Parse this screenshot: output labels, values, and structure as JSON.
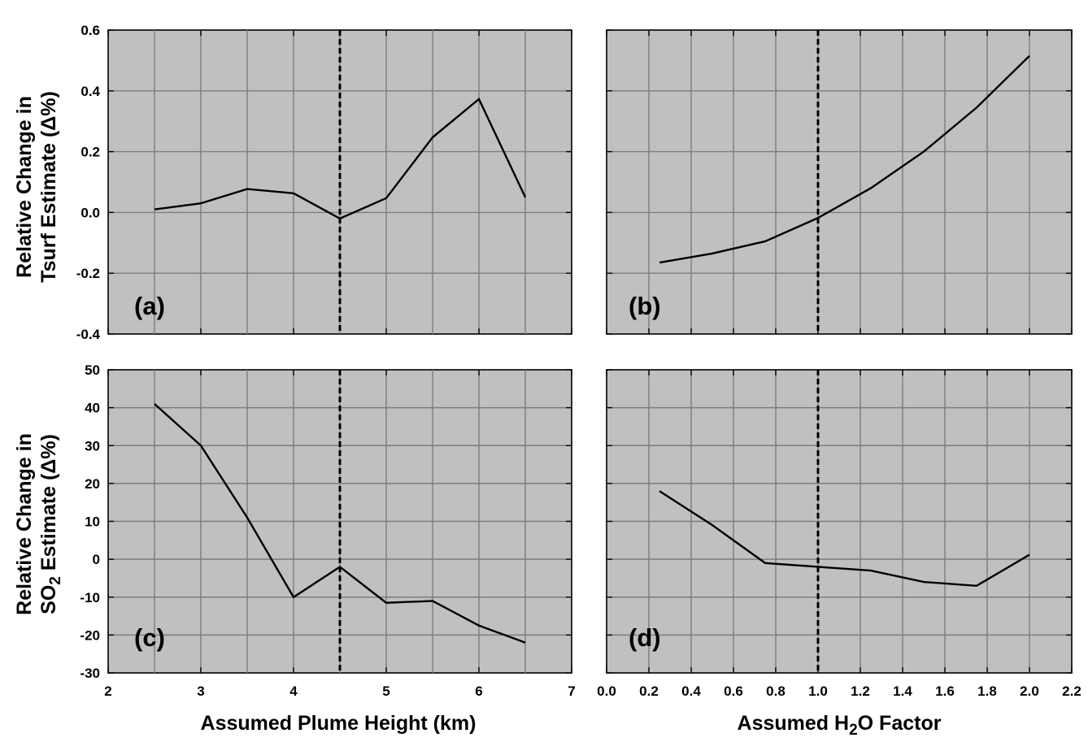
{
  "chart_data": [
    {
      "id": "a",
      "type": "line",
      "panel_label": "(a)",
      "x": [
        2.5,
        3,
        3.5,
        4,
        4.5,
        5,
        5.5,
        6,
        6.5
      ],
      "y": [
        0.01,
        0.03,
        0.077,
        0.063,
        -0.02,
        0.047,
        0.247,
        0.373,
        0.05
      ],
      "xlim": [
        2,
        7
      ],
      "ylim": [
        -0.4,
        0.6
      ],
      "xticks": [
        2,
        3,
        4,
        5,
        6,
        7
      ],
      "yticks": [
        -0.4,
        -0.2,
        0.0,
        0.2,
        0.4,
        0.6
      ],
      "ytick_labels": [
        "-0.4",
        "-0.2",
        "0.0",
        "0.2",
        "0.4",
        "0.6"
      ],
      "xgrid": [
        2.5,
        3,
        3.5,
        4,
        4.5,
        5,
        5.5,
        6,
        6.5
      ],
      "ygrid": [
        -0.2,
        0.0,
        0.2,
        0.4
      ],
      "reference_x": 4.5,
      "grid": true,
      "ylabel_line1": "Relative Change in",
      "ylabel_line2": "Tsurf Estimate (Δ%)"
    },
    {
      "id": "b",
      "type": "line",
      "panel_label": "(b)",
      "x": [
        0.25,
        0.5,
        0.75,
        1.0,
        1.25,
        1.5,
        1.75,
        2.0
      ],
      "y": [
        -0.165,
        -0.135,
        -0.095,
        -0.018,
        0.08,
        0.2,
        0.345,
        0.515
      ],
      "xlim": [
        0,
        2.2
      ],
      "ylim": [
        -0.4,
        0.6
      ],
      "xticks": [
        0.0,
        0.2,
        0.4,
        0.6,
        0.8,
        1.0,
        1.2,
        1.4,
        1.6,
        1.8,
        2.0,
        2.2
      ],
      "yticks": [
        -0.4,
        -0.2,
        0.0,
        0.2,
        0.4,
        0.6
      ],
      "xgrid": [
        0.2,
        0.4,
        0.6,
        0.8,
        1.0,
        1.2,
        1.4,
        1.6,
        1.8,
        2.0
      ],
      "ygrid": [
        -0.2,
        0.0,
        0.2,
        0.4
      ],
      "reference_x": 1.0,
      "grid": true
    },
    {
      "id": "c",
      "type": "line",
      "panel_label": "(c)",
      "x": [
        2.5,
        3,
        3.5,
        4,
        4.5,
        5,
        5.5,
        6,
        6.5
      ],
      "y": [
        41,
        30,
        11,
        -10,
        -2,
        -11.5,
        -11,
        -17.5,
        -22
      ],
      "xlim": [
        2,
        7
      ],
      "ylim": [
        -30,
        50
      ],
      "xticks": [
        2,
        3,
        4,
        5,
        6,
        7
      ],
      "yticks": [
        -30,
        -20,
        -10,
        0,
        10,
        20,
        30,
        40,
        50
      ],
      "ytick_labels": [
        "-30",
        "-20",
        "-10",
        "0",
        "10",
        "20",
        "30",
        "40",
        "50"
      ],
      "xtick_labels": [
        "2",
        "3",
        "4",
        "5",
        "6",
        "7"
      ],
      "xgrid": [
        2.5,
        3,
        3.5,
        4,
        4.5,
        5,
        5.5,
        6,
        6.5
      ],
      "ygrid": [
        -20,
        -10,
        0,
        10,
        20,
        30,
        40
      ],
      "reference_x": 4.5,
      "grid": true,
      "xlabel": "Assumed Plume Height (km)",
      "ylabel_line1": "Relative Change in",
      "ylabel_line2_pre": "SO",
      "ylabel_line2_sub": "2",
      "ylabel_line2_post": " Estimate (Δ%)"
    },
    {
      "id": "d",
      "type": "line",
      "panel_label": "(d)",
      "x": [
        0.25,
        0.5,
        0.75,
        1.0,
        1.25,
        1.5,
        1.75,
        2.0
      ],
      "y": [
        18,
        9,
        -1,
        -2,
        -3,
        -6,
        -7,
        1.2
      ],
      "xlim": [
        0,
        2.2
      ],
      "ylim": [
        -30,
        50
      ],
      "xticks": [
        0.0,
        0.2,
        0.4,
        0.6,
        0.8,
        1.0,
        1.2,
        1.4,
        1.6,
        1.8,
        2.0,
        2.2
      ],
      "yticks": [
        -30,
        -20,
        -10,
        0,
        10,
        20,
        30,
        40,
        50
      ],
      "xtick_labels": [
        "0.0",
        "0.2",
        "0.4",
        "0.6",
        "0.8",
        "1.0",
        "1.2",
        "1.4",
        "1.6",
        "1.8",
        "2.0",
        "2.2"
      ],
      "xgrid": [
        0.2,
        0.4,
        0.6,
        0.8,
        1.0,
        1.2,
        1.4,
        1.6,
        1.8,
        2.0
      ],
      "ygrid": [
        -20,
        -10,
        0,
        10,
        20,
        30,
        40
      ],
      "reference_x": 1.0,
      "grid": true,
      "xlabel_pre": "Assumed H",
      "xlabel_sub": "2",
      "xlabel_post": "O Factor"
    }
  ]
}
